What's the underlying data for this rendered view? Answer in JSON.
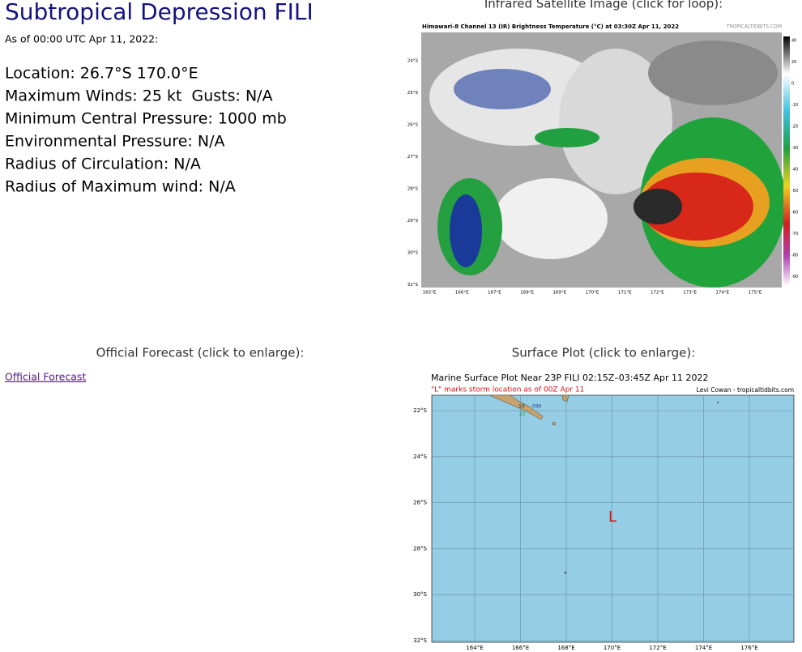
{
  "storm": {
    "title": "Subtropical Depression FILI",
    "as_of": "As of 00:00 UTC Apr 11, 2022:",
    "details": [
      "Location: 26.7°S 170.0°E",
      "Maximum Winds: 25 kt  Gusts: N/A",
      "Minimum Central Pressure: 1000 mb",
      "Environmental Pressure: N/A",
      "Radius of Circulation: N/A",
      "Radius of Maximum wind: N/A"
    ]
  },
  "satellite": {
    "heading": "Infrared Satellite Image (click for loop):",
    "image_title": "Himawari-8 Channel 13 (IR) Brightness Temperature (°C) at 03:30Z Apr 11, 2022",
    "credit": "TROPICALTIDBITS.COM",
    "lat_labels": [
      "24°S",
      "25°S",
      "26°S",
      "27°S",
      "28°S",
      "29°S",
      "30°S",
      "31°S"
    ],
    "lon_labels": [
      "165°E",
      "166°E",
      "167°E",
      "168°E",
      "169°E",
      "170°E",
      "171°E",
      "172°E",
      "173°E",
      "174°E",
      "175°E"
    ],
    "colorbar_labels": [
      "40",
      "20",
      "0",
      "-10",
      "-20",
      "-30",
      "-40",
      "-50",
      "-60",
      "-70",
      "-80",
      "-90"
    ]
  },
  "forecast": {
    "heading": "Official Forecast (click to enlarge):",
    "link": "Official Forecast"
  },
  "surface": {
    "heading": "Surface Plot (click to enlarge):",
    "title": "Marine Surface Plot Near 23P FILI 02:15Z–03:45Z Apr 11 2022",
    "subtitle": "\"L\" marks storm location as of 00Z Apr 11",
    "credit": "Levi Cowan - tropicaltidbits.com",
    "lat_labels": [
      "22°S",
      "24°S",
      "26°S",
      "28°S",
      "30°S",
      "32°S"
    ],
    "lon_labels": [
      "164°E",
      "166°E",
      "168°E",
      "170°E",
      "172°E",
      "174°E",
      "176°E"
    ],
    "station_labels": [
      "19",
      "090",
      "22"
    ],
    "marker": "L"
  }
}
